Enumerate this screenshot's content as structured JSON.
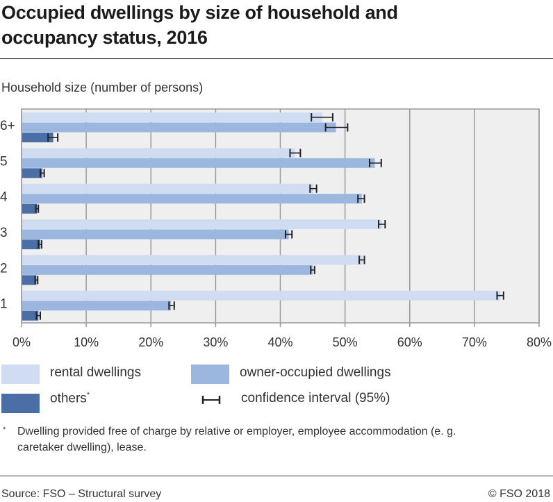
{
  "title": "Occupied dwellings by size of household and occupancy status, 2016",
  "subtitle": "Household size (number of persons)",
  "legend": {
    "rental": "rental dwellings",
    "owner": "owner-occupied dwellings",
    "others": "others",
    "others_mark": "*",
    "ci": "confidence interval (95%)"
  },
  "footnote": {
    "mark": "*",
    "text": "Dwelling provided free of charge by relative or employer, employee accommodation (e. g. caretaker dwelling), lease."
  },
  "source": "Source: FSO – Structural survey",
  "copyright": "© FSO 2018",
  "chart_data": {
    "type": "bar",
    "orientation": "horizontal",
    "title": "Occupied dwellings by size of household and occupancy status, 2016",
    "ylabel": "Household size (number of persons)",
    "xlabel": "",
    "categories": [
      "6+",
      "5",
      "4",
      "3",
      "2",
      "1"
    ],
    "xlim": [
      0,
      80
    ],
    "x_ticks": [
      "0%",
      "10%",
      "20%",
      "30%",
      "40%",
      "50%",
      "60%",
      "70%",
      "80%"
    ],
    "grid": true,
    "legend_position": "bottom",
    "colors": {
      "rental": "#cfdcf1",
      "owner": "#9bb7df",
      "others": "#4b6ea6",
      "plot_bg": "#efefef"
    },
    "series": [
      {
        "name": "rental dwellings",
        "values": [
          46.5,
          42.3,
          45.1,
          55.7,
          52.7,
          74.0
        ],
        "ci": [
          [
            44.8,
            48.1
          ],
          [
            41.5,
            43.1
          ],
          [
            44.6,
            45.6
          ],
          [
            55.2,
            56.2
          ],
          [
            52.2,
            53.0
          ],
          [
            73.5,
            74.5
          ]
        ]
      },
      {
        "name": "owner-occupied dwellings",
        "values": [
          48.6,
          54.6,
          52.6,
          41.3,
          45.0,
          23.1
        ],
        "ci": [
          [
            47.0,
            50.4
          ],
          [
            53.8,
            55.6
          ],
          [
            52.0,
            53.0
          ],
          [
            40.8,
            41.8
          ],
          [
            44.7,
            45.3
          ],
          [
            22.8,
            23.6
          ]
        ]
      },
      {
        "name": "others",
        "values": [
          4.9,
          3.2,
          2.4,
          2.9,
          2.3,
          2.6
        ],
        "ci": [
          [
            4.1,
            5.6
          ],
          [
            2.9,
            3.5
          ],
          [
            2.2,
            2.6
          ],
          [
            2.6,
            3.1
          ],
          [
            2.1,
            2.5
          ],
          [
            2.3,
            2.9
          ]
        ]
      }
    ]
  }
}
